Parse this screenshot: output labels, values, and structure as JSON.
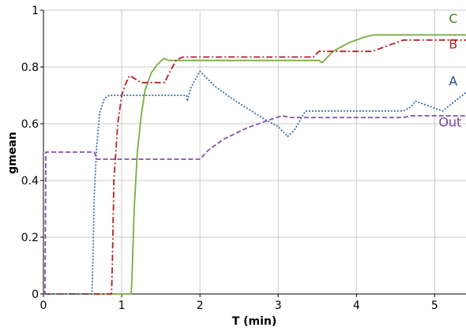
{
  "chart_data": {
    "type": "line",
    "title": "",
    "xlabel": "T (min)",
    "ylabel": "gmean",
    "xlim": [
      0,
      5.4
    ],
    "ylim": [
      0,
      1
    ],
    "xticks": [
      0,
      1,
      2,
      3,
      4,
      5
    ],
    "yticks": [
      0,
      0.2,
      0.4,
      0.6,
      0.8,
      1
    ],
    "xtick_labels": [
      "0",
      "1",
      "2",
      "3",
      "4",
      "5"
    ],
    "ytick_labels": [
      "0",
      "0.2",
      "0.4",
      "0.6",
      "0.8",
      "1"
    ],
    "grid": true,
    "series": [
      {
        "name": "C",
        "color": "#7aad3e",
        "dash": "solid",
        "x": [
          0,
          1.12,
          1.13,
          1.16,
          1.2,
          1.25,
          1.3,
          1.38,
          1.46,
          1.54,
          1.6,
          3.52,
          3.56,
          3.7,
          3.9,
          4.1,
          4.22,
          5.4
        ],
        "y": [
          0,
          0,
          0.05,
          0.3,
          0.5,
          0.63,
          0.72,
          0.78,
          0.81,
          0.83,
          0.823,
          0.823,
          0.815,
          0.855,
          0.885,
          0.905,
          0.913,
          0.913
        ]
      },
      {
        "name": "B",
        "color": "#b22222",
        "dash": "dashdot",
        "x": [
          0,
          0.87,
          0.88,
          0.9,
          0.95,
          1.0,
          1.05,
          1.1,
          1.25,
          1.3,
          1.55,
          1.6,
          1.7,
          1.78,
          1.83,
          3.45,
          3.52,
          3.6,
          4.2,
          4.6,
          5.4
        ],
        "y": [
          0,
          0,
          0.1,
          0.4,
          0.6,
          0.7,
          0.74,
          0.77,
          0.745,
          0.745,
          0.745,
          0.775,
          0.825,
          0.835,
          0.835,
          0.835,
          0.855,
          0.855,
          0.855,
          0.895,
          0.895
        ],
        "dash_array": "8,3,2,3"
      },
      {
        "name": "A",
        "color": "#3a6ea5",
        "dash": "dotted",
        "x": [
          0,
          0.62,
          0.63,
          0.65,
          0.68,
          0.72,
          0.78,
          0.84,
          1.0,
          1.5,
          1.83,
          1.84,
          1.88,
          2.0,
          2.2,
          2.4,
          2.6,
          2.8,
          3.0,
          3.12,
          3.2,
          3.35,
          4.6,
          4.7,
          4.75,
          5.1,
          5.4
        ],
        "y": [
          0,
          0,
          0.1,
          0.35,
          0.52,
          0.64,
          0.69,
          0.7,
          0.7,
          0.7,
          0.7,
          0.68,
          0.725,
          0.785,
          0.73,
          0.69,
          0.655,
          0.62,
          0.59,
          0.555,
          0.575,
          0.645,
          0.645,
          0.66,
          0.68,
          0.645,
          0.71
        ]
      },
      {
        "name": "Out",
        "color": "#8053a6",
        "dash": "dashed",
        "x": [
          0,
          0.02,
          0.03,
          0.65,
          0.68,
          1.0,
          1.5,
          2.0,
          2.1,
          2.3,
          2.6,
          2.9,
          3.05,
          3.15,
          3.4,
          4.6,
          4.7,
          5.4
        ],
        "y": [
          0,
          0,
          0.5,
          0.5,
          0.475,
          0.475,
          0.475,
          0.475,
          0.505,
          0.545,
          0.585,
          0.615,
          0.628,
          0.622,
          0.622,
          0.622,
          0.628,
          0.628
        ]
      }
    ],
    "annotations": [
      {
        "text": "C",
        "x": 5.18,
        "y": 0.955,
        "color": "#3c8c1a"
      },
      {
        "text": "B",
        "x": 5.18,
        "y": 0.865,
        "color": "#b22222"
      },
      {
        "text": "A",
        "x": 5.18,
        "y": 0.735,
        "color": "#1f4e8c"
      },
      {
        "text": "Out",
        "x": 5.05,
        "y": 0.59,
        "color": "#7a3fa0"
      }
    ]
  }
}
